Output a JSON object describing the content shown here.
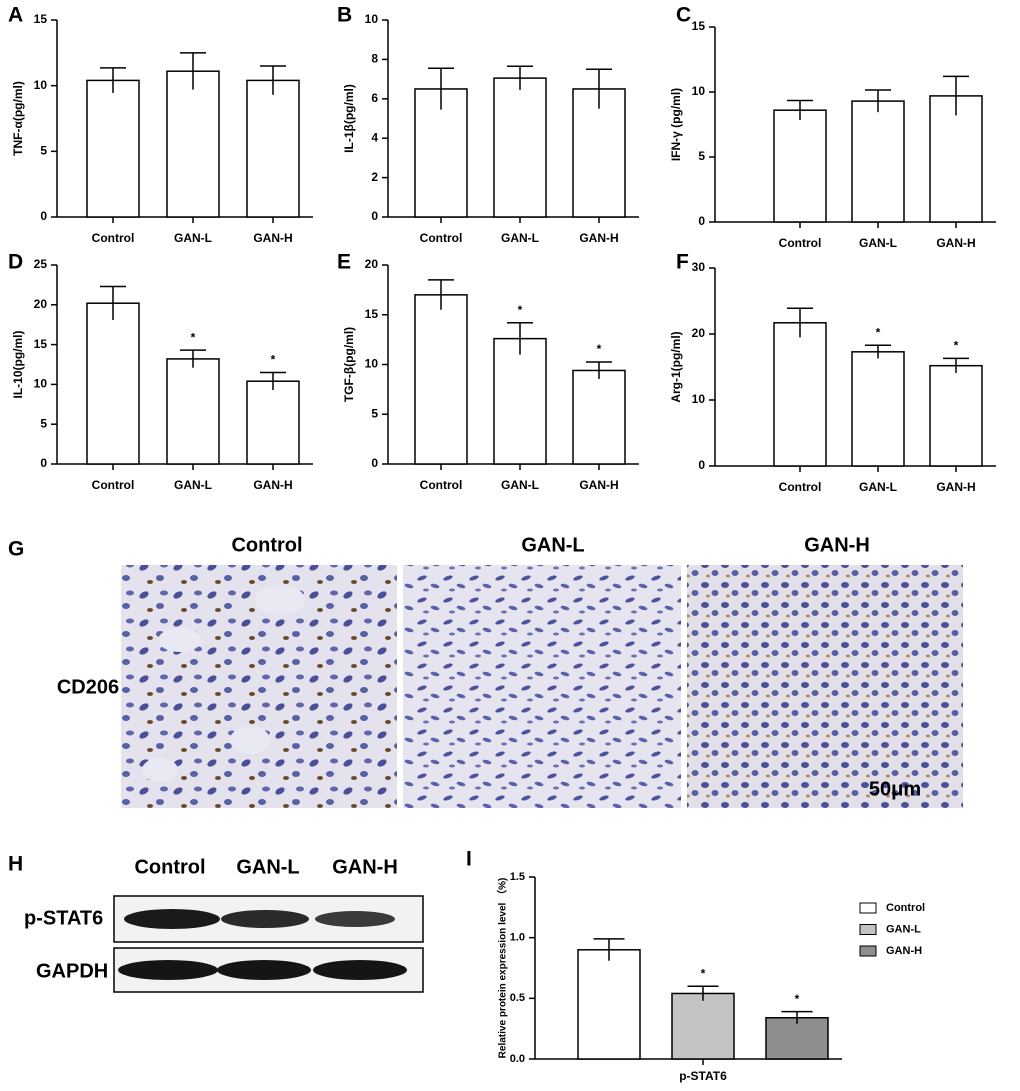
{
  "chart_data": [
    {
      "type": "bar",
      "panel": "A",
      "ylabel": "TNF-α(pg/ml)",
      "categories": [
        "Control",
        "GAN-L",
        "GAN-H"
      ],
      "values": [
        10.4,
        11.1,
        10.4
      ],
      "errors": [
        0.95,
        1.4,
        1.1
      ],
      "color": "#ffffff",
      "ylim": [
        0,
        15
      ],
      "yticks": [
        0,
        5,
        10,
        15
      ]
    },
    {
      "type": "bar",
      "panel": "B",
      "ylabel": "IL-1β(pg/ml)",
      "categories": [
        "Control",
        "GAN-L",
        "GAN-H"
      ],
      "values": [
        6.5,
        7.05,
        6.5
      ],
      "errors": [
        1.05,
        0.6,
        1.0
      ],
      "color": "#ffffff",
      "ylim": [
        0,
        10
      ],
      "yticks": [
        0,
        2,
        4,
        6,
        8,
        10
      ]
    },
    {
      "type": "bar",
      "panel": "C",
      "ylabel": "IFN-γ (pg/ml)",
      "categories": [
        "Control",
        "GAN-L",
        "GAN-H"
      ],
      "values": [
        8.6,
        9.3,
        9.7
      ],
      "errors": [
        0.75,
        0.85,
        1.5
      ],
      "color": "#ffffff",
      "ylim": [
        0,
        15
      ],
      "yticks": [
        0,
        5,
        10,
        15
      ]
    },
    {
      "type": "bar",
      "panel": "D",
      "ylabel": "IL-10(pg/ml)",
      "categories": [
        "Control",
        "GAN-L",
        "GAN-H"
      ],
      "values": [
        20.2,
        13.2,
        10.4
      ],
      "errors": [
        2.1,
        1.1,
        1.1
      ],
      "significance": [
        null,
        "*",
        "*"
      ],
      "color": "#ffffff",
      "ylim": [
        0,
        25
      ],
      "yticks": [
        0,
        5,
        10,
        15,
        20,
        25
      ]
    },
    {
      "type": "bar",
      "panel": "E",
      "ylabel": "TGF-β(pg/ml)",
      "categories": [
        "Control",
        "GAN-L",
        "GAN-H"
      ],
      "values": [
        17.0,
        12.6,
        9.4
      ],
      "errors": [
        1.5,
        1.6,
        0.85
      ],
      "significance": [
        null,
        "*",
        "*"
      ],
      "color": "#ffffff",
      "ylim": [
        0,
        20
      ],
      "yticks": [
        0,
        5,
        10,
        15,
        20
      ]
    },
    {
      "type": "bar",
      "panel": "F",
      "ylabel": "Arg-1(pg/ml)",
      "categories": [
        "Control",
        "GAN-L",
        "GAN-H"
      ],
      "values": [
        21.7,
        17.3,
        15.2
      ],
      "errors": [
        2.2,
        1.0,
        1.1
      ],
      "significance": [
        null,
        "*",
        "*"
      ],
      "color": "#ffffff",
      "ylim": [
        0,
        30
      ],
      "yticks": [
        0,
        10,
        20,
        30
      ]
    },
    {
      "type": "grouped_bar",
      "panel": "I",
      "ylabel": "Relative protein expression level （%)",
      "categories": [
        "p-STAT6"
      ],
      "series": [
        {
          "name": "Control",
          "color": "#ffffff",
          "values": [
            0.9
          ],
          "errors": [
            0.09
          ]
        },
        {
          "name": "GAN-L",
          "color": "#c4c4c4",
          "values": [
            0.54
          ],
          "errors": [
            0.06
          ],
          "significance": [
            "*"
          ]
        },
        {
          "name": "GAN-H",
          "color": "#8e8e8e",
          "values": [
            0.34
          ],
          "errors": [
            0.05
          ],
          "significance": [
            "*"
          ]
        }
      ],
      "ylim": [
        0,
        1.5
      ],
      "yticks": [
        {
          "value": 0,
          "label": "0.0"
        },
        0.5,
        {
          "value": 1,
          "label": "1.0"
        },
        1.5
      ]
    }
  ],
  "panel_g": {
    "panel": "G",
    "columns": [
      "Control",
      "GAN-L",
      "GAN-H"
    ],
    "row_label": "CD206",
    "scale_bar": "50μm"
  },
  "panel_h": {
    "panel": "H",
    "columns": [
      "Control",
      "GAN-L",
      "GAN-H"
    ],
    "rows": [
      "p-STAT6",
      "GAPDH"
    ]
  }
}
